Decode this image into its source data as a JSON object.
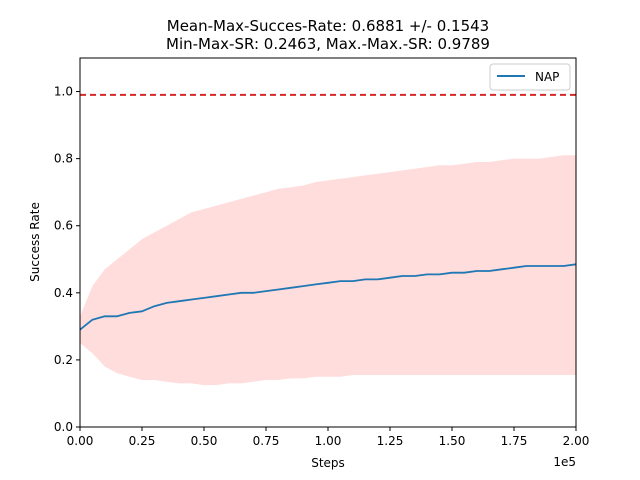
{
  "chart_data": {
    "type": "line",
    "title_line1": "Mean-Max-Succes-Rate: 0.6881 +/- 0.1543",
    "title_line2": "Min-Max-SR: 0.2463, Max.-Max.-SR: 0.9789",
    "xlabel": "Steps",
    "ylabel": "Success Rate",
    "x_offset_label": "1e5",
    "xlim": [
      0,
      2.0
    ],
    "ylim": [
      0,
      1.1
    ],
    "x_ticks": [
      0,
      0.25,
      0.5,
      0.75,
      1.0,
      1.25,
      1.5,
      1.75,
      2.0
    ],
    "x_tick_labels": [
      "0.00",
      "0.25",
      "0.50",
      "0.75",
      "1.00",
      "1.25",
      "1.50",
      "1.75",
      "2.00"
    ],
    "y_ticks": [
      0,
      0.2,
      0.4,
      0.6,
      0.8,
      1.0
    ],
    "y_tick_labels": [
      "0.0",
      "0.2",
      "0.4",
      "0.6",
      "0.8",
      "1.0"
    ],
    "reference_line": {
      "y": 0.99,
      "color": "#d62728",
      "style": "dashed"
    },
    "legend": {
      "position": "top-right"
    },
    "series": [
      {
        "name": "NAP",
        "color": "#1f77b4",
        "band_color": "#ffdddd",
        "x": [
          0.0,
          0.05,
          0.1,
          0.15,
          0.2,
          0.25,
          0.3,
          0.35,
          0.4,
          0.45,
          0.5,
          0.55,
          0.6,
          0.65,
          0.7,
          0.75,
          0.8,
          0.85,
          0.9,
          0.95,
          1.0,
          1.05,
          1.1,
          1.15,
          1.2,
          1.25,
          1.3,
          1.35,
          1.4,
          1.45,
          1.5,
          1.55,
          1.6,
          1.65,
          1.7,
          1.75,
          1.8,
          1.85,
          1.9,
          1.95,
          2.0
        ],
        "mean": [
          0.29,
          0.32,
          0.33,
          0.33,
          0.34,
          0.345,
          0.36,
          0.37,
          0.375,
          0.38,
          0.385,
          0.39,
          0.395,
          0.4,
          0.4,
          0.405,
          0.41,
          0.415,
          0.42,
          0.425,
          0.43,
          0.435,
          0.435,
          0.44,
          0.44,
          0.445,
          0.45,
          0.45,
          0.455,
          0.455,
          0.46,
          0.46,
          0.465,
          0.465,
          0.47,
          0.475,
          0.48,
          0.48,
          0.48,
          0.48,
          0.485
        ],
        "upper": [
          0.33,
          0.42,
          0.47,
          0.5,
          0.53,
          0.56,
          0.58,
          0.6,
          0.62,
          0.64,
          0.65,
          0.66,
          0.67,
          0.68,
          0.69,
          0.7,
          0.71,
          0.715,
          0.72,
          0.73,
          0.735,
          0.74,
          0.745,
          0.75,
          0.755,
          0.76,
          0.765,
          0.77,
          0.775,
          0.78,
          0.78,
          0.785,
          0.79,
          0.79,
          0.795,
          0.8,
          0.8,
          0.8,
          0.805,
          0.81,
          0.81
        ],
        "lower": [
          0.25,
          0.22,
          0.18,
          0.16,
          0.15,
          0.14,
          0.14,
          0.135,
          0.13,
          0.13,
          0.125,
          0.125,
          0.13,
          0.13,
          0.135,
          0.14,
          0.14,
          0.145,
          0.145,
          0.15,
          0.15,
          0.15,
          0.155,
          0.155,
          0.155,
          0.155,
          0.155,
          0.155,
          0.155,
          0.155,
          0.155,
          0.155,
          0.155,
          0.155,
          0.155,
          0.155,
          0.155,
          0.155,
          0.155,
          0.155,
          0.155
        ]
      }
    ]
  }
}
